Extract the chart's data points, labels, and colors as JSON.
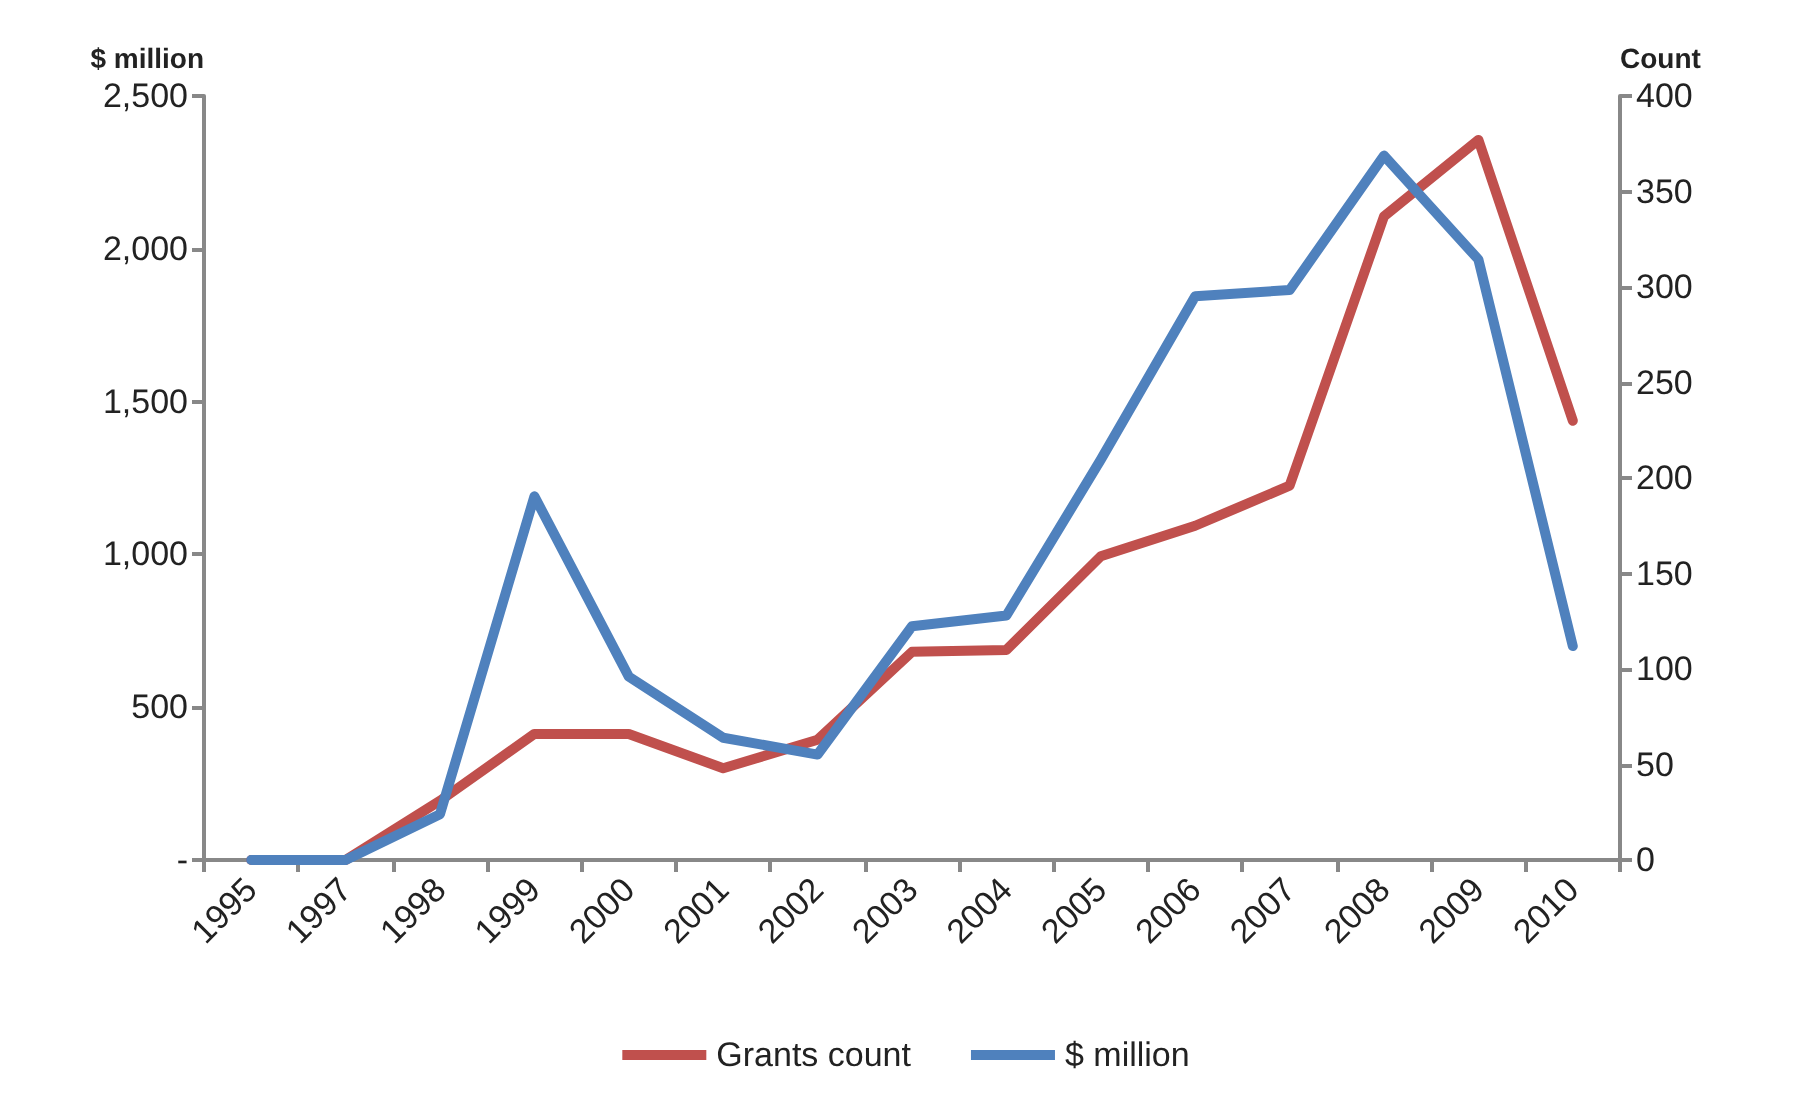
{
  "chart_data": {
    "type": "line",
    "ylabel": "$ million",
    "y2label": "Count",
    "categories": [
      "1995",
      "1997",
      "1998",
      "1999",
      "2000",
      "2001",
      "2002",
      "2003",
      "2004",
      "2005",
      "2006",
      "2007",
      "2008",
      "2009",
      "2010"
    ],
    "series": [
      {
        "name": "Grants count",
        "color": "#c0504d",
        "axis": "y2",
        "values": [
          0,
          0,
          31,
          66,
          66,
          48,
          63,
          109,
          110,
          159,
          175,
          196,
          337,
          377,
          230
        ]
      },
      {
        "name": "$ million",
        "color": "#4f81bd",
        "values": [
          0,
          0,
          150,
          1190,
          600,
          400,
          345,
          765,
          800,
          1310,
          1845,
          1865,
          2305,
          1965,
          700
        ]
      }
    ],
    "ylim": [
      0,
      2500
    ],
    "yticks": [
      {
        "value": 0,
        "label": "-"
      },
      {
        "value": 500,
        "label": "500"
      },
      {
        "value": 1000,
        "label": "1,000"
      },
      {
        "value": 1500,
        "label": "1,500"
      },
      {
        "value": 2000,
        "label": "2,000"
      },
      {
        "value": 2500,
        "label": "2,500"
      }
    ],
    "y2lim": [
      0,
      400
    ],
    "y2ticks": [
      0,
      50,
      100,
      150,
      200,
      250,
      300,
      350,
      400
    ],
    "grid": false,
    "legend": "bottom",
    "marker": "none",
    "line_style": "solid"
  }
}
